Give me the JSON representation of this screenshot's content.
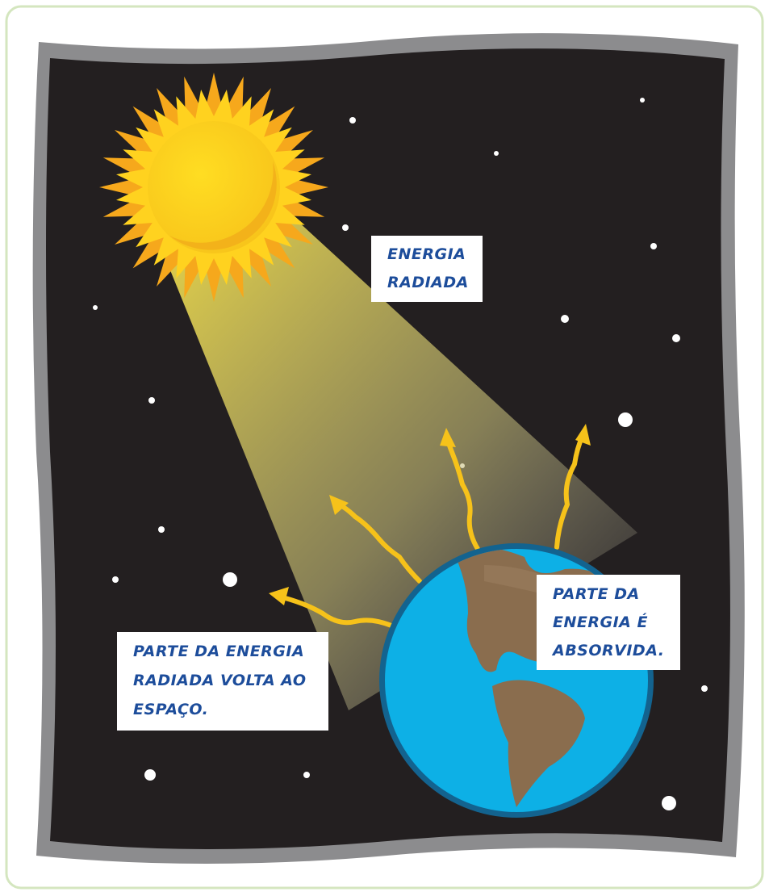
{
  "labels": [
    {
      "lines": [
        "ENERGIA",
        "RADIADA"
      ]
    },
    {
      "lines": [
        "PARTE DA ENERGIA",
        "RADIADA VOLTA AO",
        "ESPAÇO."
      ]
    },
    {
      "lines": [
        "PARTE DA",
        "ENERGIA É",
        "ABSORVIDA."
      ]
    }
  ]
}
